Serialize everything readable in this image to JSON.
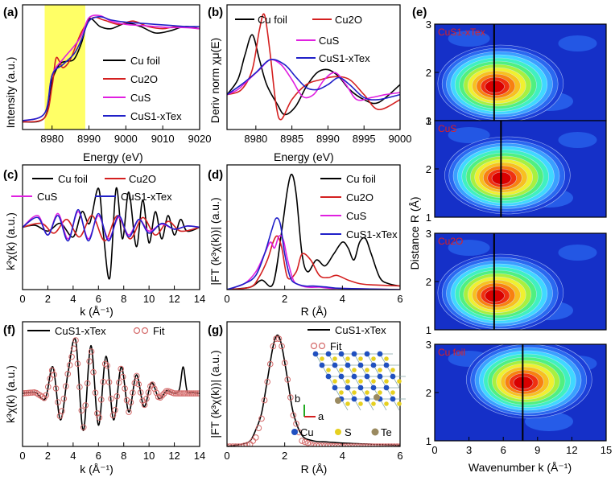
{
  "colors": {
    "cu_foil": "#000000",
    "cu2o": "#d42020",
    "cus": "#e020e0",
    "custe": "#2020c8",
    "fit_marker": "#d46a6a",
    "highlight": "#ffff66"
  },
  "chart_data": [
    {
      "panel": "(a)",
      "type": "line",
      "xlabel": "Energy (eV)",
      "ylabel": "Intensity (a.u.)",
      "xlim": [
        8972,
        9020
      ],
      "xticks": [
        "8980",
        "8990",
        "9000",
        "9010",
        "9020"
      ],
      "legend": [
        "Cu foil",
        "Cu2O",
        "CuS",
        "CuS1-xTex"
      ],
      "highlight_range": [
        8978,
        8989
      ],
      "series": [
        {
          "name": "Cu foil",
          "color": "#000000",
          "x": [
            8972,
            8978,
            8980,
            8982,
            8984,
            8986,
            8988,
            8990,
            8993,
            8996,
            9000,
            9004,
            9008,
            9012,
            9016,
            9020
          ],
          "y": [
            0.02,
            0.06,
            0.4,
            0.55,
            0.58,
            0.6,
            0.75,
            0.97,
            0.9,
            0.88,
            0.93,
            0.9,
            0.84,
            0.86,
            0.9,
            0.88
          ]
        },
        {
          "name": "Cu2O",
          "color": "#d42020",
          "x": [
            8972,
            8978,
            8980,
            8981,
            8982,
            8983,
            8985,
            8988,
            8991,
            8994,
            8998,
            9002,
            9006,
            9010,
            9014,
            9020
          ],
          "y": [
            0.02,
            0.06,
            0.35,
            0.6,
            0.58,
            0.52,
            0.6,
            0.85,
            0.98,
            0.96,
            0.92,
            0.95,
            0.9,
            0.88,
            0.9,
            0.88
          ]
        },
        {
          "name": "CuS",
          "color": "#e020e0",
          "x": [
            8972,
            8978,
            8980,
            8983,
            8986,
            8988,
            8990,
            8993,
            8996,
            9000,
            9004,
            9008,
            9012,
            9016,
            9020
          ],
          "y": [
            0.03,
            0.1,
            0.45,
            0.6,
            0.72,
            0.82,
            0.98,
            1.0,
            0.95,
            0.92,
            0.91,
            0.9,
            0.89,
            0.89,
            0.88
          ]
        },
        {
          "name": "CuS1-xTex",
          "color": "#2020c8",
          "x": [
            8972,
            8978,
            8980,
            8983,
            8986,
            8988,
            8990,
            8993,
            8996,
            9000,
            9004,
            9008,
            9012,
            9016,
            9020
          ],
          "y": [
            0.03,
            0.1,
            0.45,
            0.55,
            0.65,
            0.78,
            0.95,
            0.99,
            0.96,
            0.94,
            0.93,
            0.92,
            0.91,
            0.9,
            0.9
          ]
        }
      ]
    },
    {
      "panel": "(b)",
      "type": "line",
      "xlabel": "Energy (eV)",
      "ylabel": "Deriv norm χμ(E)",
      "xlim": [
        8976,
        9000
      ],
      "xticks": [
        "8980",
        "8985",
        "8990",
        "8995",
        "9000"
      ],
      "legend": [
        "Cu foil",
        "Cu2O",
        "CuS",
        "CuS1-xTex"
      ],
      "series": [
        {
          "name": "Cu foil",
          "color": "#000000",
          "x": [
            8976,
            8977.5,
            8978.5,
            8979.5,
            8980.5,
            8981.5,
            8983,
            8984,
            8985.5,
            8987,
            8988.5,
            8990,
            8991.5,
            8993,
            8995,
            8997,
            9000
          ],
          "y": [
            0.2,
            0.35,
            0.6,
            0.8,
            0.55,
            0.3,
            0.1,
            0.0,
            0.08,
            0.28,
            0.42,
            0.45,
            0.38,
            0.25,
            0.15,
            0.12,
            0.3
          ]
        },
        {
          "name": "Cu2O",
          "color": "#d42020",
          "x": [
            8976,
            8978,
            8979.5,
            8980.5,
            8981.2,
            8982,
            8982.8,
            8983.5,
            8985,
            8987,
            8989,
            8991,
            8993,
            8995,
            8997,
            9000
          ],
          "y": [
            0.2,
            0.25,
            0.45,
            0.85,
            1.0,
            0.6,
            0.1,
            -0.05,
            0.15,
            0.3,
            0.35,
            0.38,
            0.35,
            0.2,
            0.05,
            0.15
          ]
        },
        {
          "name": "CuS",
          "color": "#e020e0",
          "x": [
            8976,
            8977.5,
            8979,
            8980.5,
            8982,
            8983.5,
            8985,
            8986.5,
            8988,
            8989.5,
            8991,
            8992.5,
            8994,
            8996,
            8998,
            9000
          ],
          "y": [
            0.2,
            0.25,
            0.35,
            0.45,
            0.55,
            0.5,
            0.35,
            0.18,
            0.2,
            0.35,
            0.42,
            0.3,
            0.15,
            0.17,
            0.2,
            0.22
          ]
        },
        {
          "name": "CuS1-xTex",
          "color": "#2020c8",
          "x": [
            8976,
            8978,
            8980,
            8982,
            8984,
            8985.5,
            8987,
            8988.5,
            8990,
            8991.5,
            8993,
            8995,
            8997,
            9000
          ],
          "y": [
            0.2,
            0.3,
            0.42,
            0.55,
            0.5,
            0.38,
            0.27,
            0.25,
            0.3,
            0.37,
            0.3,
            0.17,
            0.15,
            0.2
          ]
        }
      ]
    },
    {
      "panel": "(c)",
      "type": "line",
      "xlabel": "k (Å⁻¹)",
      "ylabel": "k³χ(k) (a.u.)",
      "xlim": [
        0,
        14
      ],
      "xticks": [
        "0",
        "2",
        "4",
        "6",
        "8",
        "10",
        "12",
        "14"
      ],
      "legend": [
        "Cu foil",
        "Cu2O",
        "CuS",
        "CuS1-xTex"
      ],
      "series": [
        {
          "name": "Cu foil",
          "color": "#000000",
          "x": [
            0,
            1,
            2,
            3,
            4,
            4.7,
            5.3,
            6,
            6.4,
            6.9,
            7.4,
            7.9,
            8.4,
            9,
            9.5,
            10,
            10.5,
            11,
            11.5,
            12,
            12.5,
            13,
            14
          ],
          "y": [
            0,
            0.05,
            -0.1,
            0.1,
            -0.25,
            0.4,
            0.1,
            1.0,
            -0.2,
            -1.3,
            1.0,
            -0.3,
            0.9,
            -0.5,
            0.7,
            -0.4,
            0.4,
            -0.3,
            0.3,
            -0.2,
            0.2,
            -0.1,
            0
          ]
        },
        {
          "name": "Cu2O",
          "color": "#d42020",
          "x": [
            0,
            1.5,
            2.5,
            3.5,
            4.5,
            5.5,
            6.5,
            7.5,
            8.5,
            9.5,
            10.5,
            11.5,
            12.5,
            14
          ],
          "y": [
            0,
            0.1,
            -0.15,
            0.2,
            -0.25,
            0.3,
            -0.35,
            0.3,
            -0.3,
            0.25,
            -0.2,
            0.15,
            -0.1,
            0
          ]
        },
        {
          "name": "CuS",
          "color": "#e020e0",
          "x": [
            0,
            1.2,
            2,
            2.8,
            3.6,
            4.4,
            5.2,
            6,
            6.8,
            7.6,
            8.4,
            9.2,
            10,
            11,
            12,
            13,
            14
          ],
          "y": [
            0,
            0.3,
            -0.2,
            0.35,
            -0.3,
            0.4,
            -0.3,
            0.3,
            -0.3,
            0.25,
            -0.2,
            0.2,
            -0.1,
            0.08,
            -0.05,
            0.03,
            0
          ]
        },
        {
          "name": "CuS1-xTex",
          "color": "#2020c8",
          "x": [
            0,
            1.2,
            2,
            2.8,
            3.6,
            4.4,
            5.2,
            6,
            6.8,
            7.6,
            8.4,
            9.2,
            10,
            11,
            12,
            13,
            14
          ],
          "y": [
            0,
            0.25,
            -0.2,
            0.3,
            -0.35,
            0.45,
            -0.35,
            0.35,
            -0.35,
            0.3,
            -0.25,
            0.2,
            -0.15,
            0.1,
            -0.05,
            0.03,
            0
          ]
        }
      ]
    },
    {
      "panel": "(d)",
      "type": "line",
      "xlabel": "R (Å)",
      "ylabel": "|FT (k³χ(k))| (a.u.)",
      "xlim": [
        0,
        6
      ],
      "xticks": [
        "0",
        "2",
        "4",
        "6"
      ],
      "legend": [
        "Cu foil",
        "Cu2O",
        "CuS",
        "CuS1-xTex"
      ],
      "series": [
        {
          "name": "Cu foil",
          "color": "#000000",
          "x": [
            0,
            0.8,
            1.2,
            1.6,
            1.9,
            2.1,
            2.25,
            2.4,
            2.6,
            2.8,
            3.1,
            3.4,
            3.7,
            4.0,
            4.2,
            4.4,
            4.6,
            4.8,
            5.0,
            5.3,
            5.6,
            6
          ],
          "y": [
            0,
            0.02,
            0.08,
            0.05,
            0.5,
            0.85,
            0.97,
            0.8,
            0.3,
            0.15,
            0.25,
            0.2,
            0.3,
            0.4,
            0.35,
            0.25,
            0.4,
            0.43,
            0.3,
            0.1,
            0.05,
            0.03
          ]
        },
        {
          "name": "Cu2O",
          "color": "#d42020",
          "x": [
            0,
            0.8,
            1.1,
            1.4,
            1.6,
            1.75,
            1.9,
            2.1,
            2.4,
            2.6,
            2.9,
            3.2,
            3.5,
            3.8,
            4.2,
            4.6,
            5,
            6
          ],
          "y": [
            0,
            0.02,
            0.1,
            0.25,
            0.4,
            0.45,
            0.35,
            0.1,
            0.15,
            0.3,
            0.25,
            0.12,
            0.1,
            0.12,
            0.08,
            0.05,
            0.04,
            0.03
          ]
        },
        {
          "name": "CuS",
          "color": "#e020e0",
          "x": [
            0,
            0.6,
            1.0,
            1.3,
            1.5,
            1.65,
            1.8,
            1.95,
            2.1,
            2.3,
            2.5,
            2.8,
            3.2,
            3.6,
            4,
            6
          ],
          "y": [
            0,
            0.05,
            0.15,
            0.3,
            0.4,
            0.35,
            0.45,
            0.42,
            0.25,
            0.08,
            0.04,
            0.02,
            0.02,
            0.01,
            0.01,
            0
          ]
        },
        {
          "name": "CuS1-xTex",
          "color": "#2020c8",
          "x": [
            0,
            0.6,
            1.0,
            1.3,
            1.55,
            1.7,
            1.85,
            2.0,
            2.2,
            2.4,
            2.7,
            3.0,
            3.5,
            4,
            6
          ],
          "y": [
            0,
            0.05,
            0.12,
            0.3,
            0.5,
            0.6,
            0.55,
            0.3,
            0.1,
            0.05,
            0.03,
            0.03,
            0.02,
            0.01,
            0
          ]
        }
      ]
    },
    {
      "panel": "(f)",
      "type": "line",
      "xlabel": "k (Å⁻¹)",
      "ylabel": "k³χ(k) (a.u.)",
      "xlim": [
        0,
        14
      ],
      "xticks": [
        "0",
        "2",
        "4",
        "6",
        "8",
        "10",
        "12",
        "14"
      ],
      "legend": [
        "CuS1-xTex",
        "Fit"
      ],
      "series": [
        {
          "name": "CuS1-xTex",
          "color": "#000000",
          "x": [
            0,
            1,
            1.8,
            2.4,
            3,
            3.6,
            4.2,
            4.8,
            5.4,
            6,
            6.6,
            7.2,
            7.8,
            8.4,
            9,
            9.6,
            10.2,
            10.8,
            11.4,
            12,
            12.4,
            12.7,
            13,
            13.4,
            14
          ],
          "y": [
            0,
            0.02,
            -0.1,
            0.5,
            -0.5,
            0.4,
            1.0,
            -0.7,
            0.9,
            -0.6,
            0.7,
            -0.5,
            0.5,
            -0.35,
            0.35,
            -0.25,
            0.2,
            -0.1,
            0.05,
            0,
            0.08,
            0.5,
            0.05,
            0.02,
            0
          ]
        },
        {
          "name": "Fit",
          "color": "#d46a6a",
          "x": [
            0,
            1,
            1.8,
            2.4,
            3,
            3.6,
            4.2,
            4.8,
            5.4,
            6,
            6.6,
            7.2,
            7.8,
            8.4,
            9,
            9.6,
            10.2,
            10.8,
            11.4,
            12,
            13,
            14
          ],
          "y": [
            0,
            0.02,
            -0.1,
            0.5,
            -0.5,
            0.4,
            1.0,
            -0.7,
            0.9,
            -0.6,
            0.7,
            -0.5,
            0.5,
            -0.35,
            0.35,
            -0.25,
            0.2,
            -0.1,
            0.05,
            0,
            0,
            0
          ]
        }
      ]
    },
    {
      "panel": "(g)",
      "type": "line",
      "xlabel": "R (Å)",
      "ylabel": "|FT (k³χ(k))| (a.u.)",
      "xlim": [
        0,
        6
      ],
      "xticks": [
        "0",
        "2",
        "4",
        "6"
      ],
      "legend": [
        "CuS1-xTex",
        "Fit"
      ],
      "series": [
        {
          "name": "CuS1-xTex",
          "color": "#000000",
          "x": [
            0,
            0.5,
            0.8,
            1.0,
            1.2,
            1.4,
            1.6,
            1.75,
            1.9,
            2.1,
            2.3,
            2.6,
            3.0,
            3.5,
            4.0,
            5.0,
            6
          ],
          "y": [
            0,
            0.02,
            0.05,
            0.15,
            0.3,
            0.6,
            0.9,
            1.0,
            0.9,
            0.6,
            0.3,
            0.1,
            0.05,
            0.04,
            0.03,
            0.02,
            0.01
          ]
        },
        {
          "name": "Fit",
          "color": "#d46a6a",
          "x": [
            0,
            0.5,
            0.8,
            1.0,
            1.2,
            1.4,
            1.6,
            1.75,
            1.9,
            2.1,
            2.3,
            2.6,
            3.0,
            4,
            6
          ],
          "y": [
            0,
            0.0,
            0.02,
            0.08,
            0.25,
            0.58,
            0.9,
            1.0,
            0.9,
            0.6,
            0.28,
            0.05,
            0.01,
            0,
            0
          ]
        }
      ]
    },
    {
      "panel": "(e)",
      "type": "heatmap",
      "xlabel": "Wavenumber k (Å⁻¹)",
      "ylabel": "Distance R (Å)",
      "xlim": [
        0,
        15
      ],
      "xticks": [
        "0",
        "3",
        "6",
        "9",
        "12",
        "15"
      ],
      "yticks": [
        "1",
        "2",
        "3"
      ],
      "maps": [
        {
          "label": "CuS1-xTex",
          "peak_k": 5.2,
          "peak_R": 1.7,
          "line_k": 5.2
        },
        {
          "label": "CuS",
          "peak_k": 5.8,
          "peak_R": 1.8,
          "line_k": 5.8
        },
        {
          "label": "Cu2O",
          "peak_k": 5.2,
          "peak_R": 1.7,
          "line_k": 5.2
        },
        {
          "label": "Cu foil",
          "peak_k": 7.7,
          "peak_R": 2.2,
          "line_k": 7.7
        }
      ]
    }
  ],
  "panel_labels": {
    "a": "(a)",
    "b": "(b)",
    "c": "(c)",
    "d": "(d)",
    "e": "(e)",
    "f": "(f)",
    "g": "(g)"
  },
  "axis_labels": {
    "energy": "Energy (eV)",
    "intensity": "Intensity (a.u.)",
    "deriv": "Deriv norm χμ(E)",
    "k3chi": "k³χ(k) (a.u.)",
    "k": "k (Å⁻¹)",
    "ft": "|FT (k³χ(k))| (a.u.)",
    "r": "R (Å)",
    "distance": "Distance R (Å)",
    "wavenumber": "Wavenumber k (Å⁻¹)"
  },
  "legend_text": {
    "cu_foil": "Cu foil",
    "cu2o": "Cu2O",
    "cus": "CuS",
    "custe": "CuS1-xTex",
    "fit": "Fit"
  },
  "inset": {
    "a_label": "a",
    "b_label": "b",
    "cu": "Cu",
    "s": "S",
    "te": "Te"
  }
}
